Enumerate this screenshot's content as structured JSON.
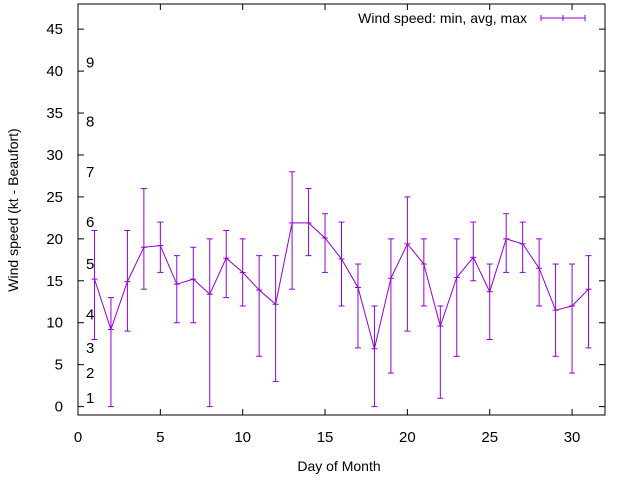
{
  "chart_data": {
    "type": "errorbar-line",
    "xlabel": "Day of Month",
    "ylabel": "Wind speed (kt - Beaufort)",
    "xlim": [
      0,
      32
    ],
    "ylim": [
      -1,
      48
    ],
    "xticks": [
      0,
      5,
      10,
      15,
      20,
      25,
      30
    ],
    "yticks": [
      0,
      5,
      10,
      15,
      20,
      25,
      30,
      35,
      40,
      45
    ],
    "grid": false,
    "legend_position": "top-right",
    "series_color": "#9400d3",
    "beaufort_labels": [
      {
        "label": "1",
        "kt": 1
      },
      {
        "label": "2",
        "kt": 4
      },
      {
        "label": "3",
        "kt": 7
      },
      {
        "label": "4",
        "kt": 11
      },
      {
        "label": "5",
        "kt": 17
      },
      {
        "label": "6",
        "kt": 22
      },
      {
        "label": "7",
        "kt": 28
      },
      {
        "label": "8",
        "kt": 34
      },
      {
        "label": "9",
        "kt": 41
      }
    ],
    "series": [
      {
        "name": "Wind speed: min, avg, max",
        "x": [
          1,
          2,
          3,
          4,
          5,
          6,
          7,
          8,
          9,
          10,
          11,
          12,
          13,
          14,
          15,
          16,
          17,
          18,
          19,
          20,
          21,
          22,
          23,
          24,
          25,
          26,
          27,
          28,
          29,
          30,
          31
        ],
        "avg": [
          15.2,
          9.2,
          14.9,
          19.0,
          19.2,
          14.6,
          15.2,
          13.4,
          17.7,
          16.0,
          13.9,
          12.2,
          21.9,
          21.9,
          20.1,
          17.6,
          14.2,
          6.9,
          15.3,
          19.4,
          17.0,
          9.6,
          15.4,
          17.8,
          13.7,
          20.0,
          19.4,
          16.5,
          11.5,
          12.0,
          14.0
        ],
        "min": [
          8,
          0,
          9,
          14,
          16,
          10,
          10,
          0,
          13,
          12,
          6,
          3,
          14,
          18,
          16,
          12,
          7,
          0,
          4,
          9,
          12,
          1,
          6,
          15,
          8,
          16,
          16,
          12,
          6,
          4,
          7
        ],
        "max": [
          21,
          13,
          21,
          26,
          22,
          18,
          19,
          20,
          21,
          20,
          18,
          18,
          28,
          26,
          23,
          22,
          17,
          12,
          20,
          25,
          20,
          12,
          20,
          22,
          17,
          23,
          22,
          20,
          17,
          17,
          18
        ]
      }
    ]
  }
}
